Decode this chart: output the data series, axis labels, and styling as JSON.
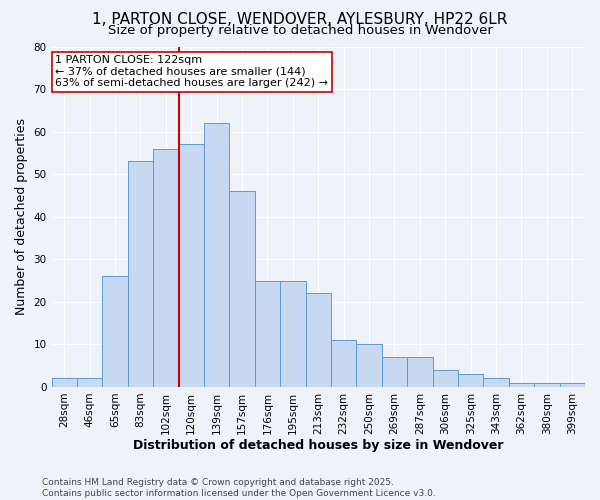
{
  "title_line1": "1, PARTON CLOSE, WENDOVER, AYLESBURY, HP22 6LR",
  "title_line2": "Size of property relative to detached houses in Wendover",
  "xlabel": "Distribution of detached houses by size in Wendover",
  "ylabel": "Number of detached properties",
  "bar_labels": [
    "28sqm",
    "46sqm",
    "65sqm",
    "83sqm",
    "102sqm",
    "120sqm",
    "139sqm",
    "157sqm",
    "176sqm",
    "195sqm",
    "213sqm",
    "232sqm",
    "250sqm",
    "269sqm",
    "287sqm",
    "306sqm",
    "325sqm",
    "343sqm",
    "362sqm",
    "380sqm",
    "399sqm"
  ],
  "bar_values": [
    2,
    2,
    26,
    53,
    56,
    57,
    62,
    46,
    25,
    25,
    22,
    11,
    10,
    7,
    7,
    4,
    3,
    2,
    1,
    1,
    1
  ],
  "bar_color": "#c6d9f0",
  "bar_edge_color": "#5b9bd5",
  "vline_index": 5,
  "vline_color": "#cc0000",
  "annotation_text": "1 PARTON CLOSE: 122sqm\n← 37% of detached houses are smaller (144)\n63% of semi-detached houses are larger (242) →",
  "annotation_box_color": "#ffffff",
  "annotation_box_edge": "#cc0000",
  "ylim": [
    0,
    80
  ],
  "yticks": [
    0,
    10,
    20,
    30,
    40,
    50,
    60,
    70,
    80
  ],
  "footnote": "Contains HM Land Registry data © Crown copyright and database right 2025.\nContains public sector information licensed under the Open Government Licence v3.0.",
  "background_color": "#eef2f9",
  "grid_color": "#ffffff",
  "title_fontsize": 11,
  "subtitle_fontsize": 9.5,
  "axis_label_fontsize": 9,
  "tick_fontsize": 7.5,
  "annotation_fontsize": 8,
  "footnote_fontsize": 6.5
}
